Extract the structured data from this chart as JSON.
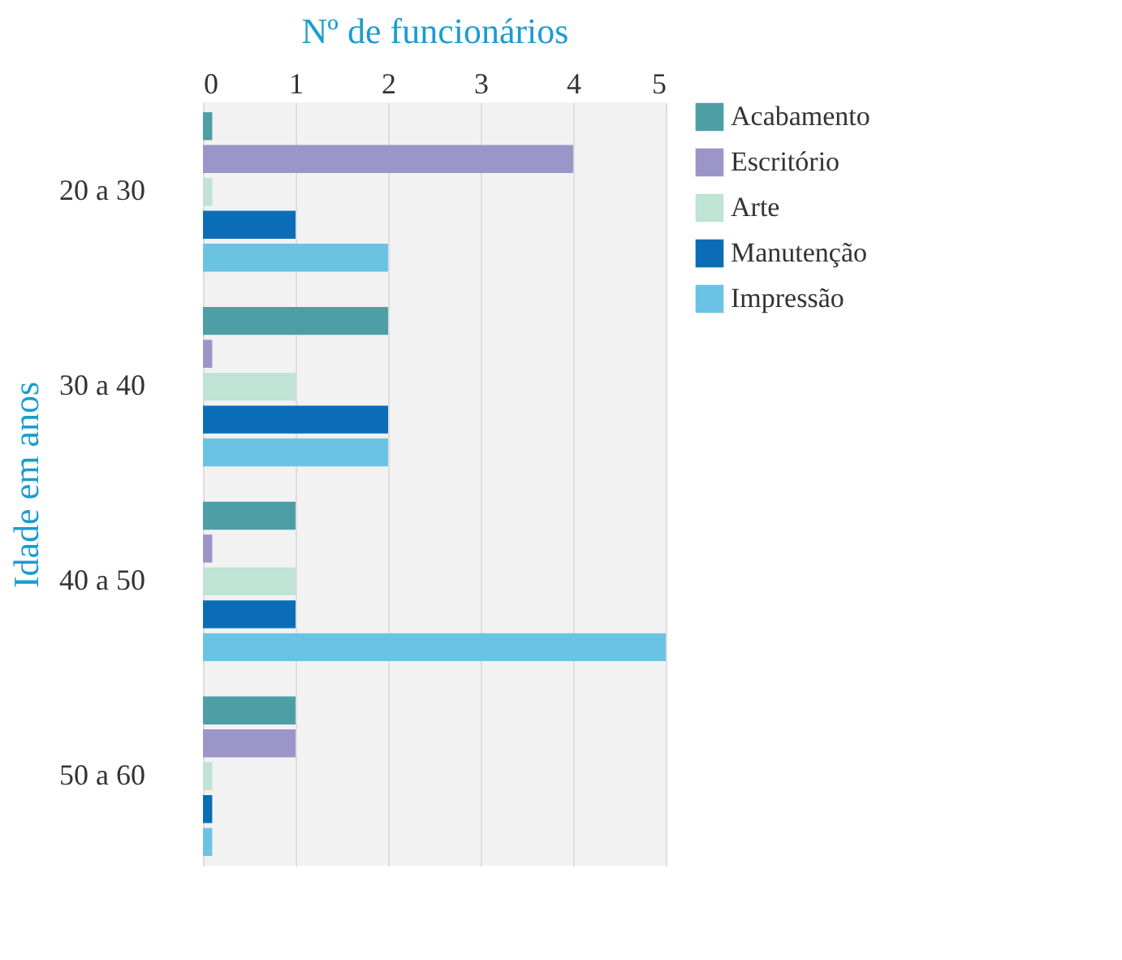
{
  "chart_data": {
    "type": "bar",
    "orientation": "horizontal",
    "xlabel": "Nº de funcionários",
    "ylabel": "Idade em anos",
    "categories": [
      "20 a 30",
      "30 a 40",
      "40 a 50",
      "50 a 60"
    ],
    "series": [
      {
        "name": "Acabamento",
        "color": "#4e9ea6",
        "values": [
          0.1,
          2,
          1,
          1
        ]
      },
      {
        "name": "Escritório",
        "color": "#9b95c9",
        "values": [
          4,
          0.1,
          0.1,
          1
        ]
      },
      {
        "name": "Arte",
        "color": "#bfe3d5",
        "values": [
          0.1,
          1,
          1,
          0.1
        ]
      },
      {
        "name": "Manutenção",
        "color": "#0b6db7",
        "values": [
          1,
          2,
          1,
          0.1
        ]
      },
      {
        "name": "Impressão",
        "color": "#6bc3e3",
        "values": [
          2,
          2,
          5,
          0.1
        ]
      }
    ],
    "xlim": [
      0,
      5
    ],
    "xticks": [
      0,
      1,
      2,
      3,
      4,
      5
    ],
    "grid": "x",
    "legend": "right"
  }
}
